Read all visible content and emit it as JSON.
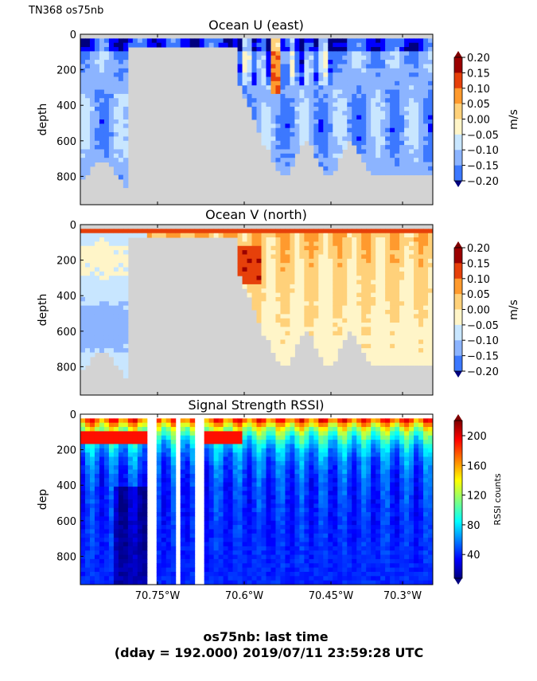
{
  "header": {
    "text": "TN368 os75nb"
  },
  "footer": {
    "line1": "os75nb: last time",
    "line2": "(dday = 192.000) 2019/07/11 23:59:28 UTC"
  },
  "colors": {
    "nodata": "#d3d3d3",
    "background": "#ffffff"
  },
  "chart_data": [
    {
      "type": "heatmap",
      "title": "Ocean U (east)",
      "ylabel": "depth",
      "y_ticks": [
        "0",
        "200",
        "400",
        "600",
        "800"
      ],
      "y_tick_values": [
        0,
        200,
        400,
        600,
        800
      ],
      "ylim": [
        960,
        0
      ],
      "x_ticks": [],
      "colorbar": {
        "label": "m/s",
        "ticks": [
          "0.20",
          "0.15",
          "0.10",
          "0.05",
          "0.00",
          "−0.05",
          "−0.10",
          "−0.15",
          "−0.20"
        ],
        "tick_values": [
          0.2,
          0.15,
          0.1,
          0.05,
          0.0,
          -0.05,
          -0.1,
          -0.15,
          -0.2
        ],
        "range": [
          -0.2,
          0.2
        ],
        "colormap": "jet-discrete",
        "extend": "both"
      },
      "nodata_color": "#d3d3d3"
    },
    {
      "type": "heatmap",
      "title": "Ocean V (north)",
      "ylabel": "depth",
      "y_ticks": [
        "0",
        "200",
        "400",
        "600",
        "800"
      ],
      "y_tick_values": [
        0,
        200,
        400,
        600,
        800
      ],
      "ylim": [
        960,
        0
      ],
      "x_ticks": [],
      "colorbar": {
        "label": "m/s",
        "ticks": [
          "0.20",
          "0.15",
          "0.10",
          "0.05",
          "0.00",
          "−0.05",
          "−0.10",
          "−0.15",
          "−0.20"
        ],
        "tick_values": [
          0.2,
          0.15,
          0.1,
          0.05,
          0.0,
          -0.05,
          -0.1,
          -0.15,
          -0.2
        ],
        "range": [
          -0.2,
          0.2
        ],
        "colormap": "jet-discrete",
        "extend": "both"
      },
      "nodata_color": "#d3d3d3"
    },
    {
      "type": "heatmap",
      "title": "Signal Strength RSSI)",
      "ylabel": "dep",
      "y_ticks": [
        "0",
        "200",
        "400",
        "600",
        "800"
      ],
      "y_tick_values": [
        0,
        200,
        400,
        600,
        800
      ],
      "ylim": [
        960,
        0
      ],
      "x_ticks": [
        "70.75°W",
        "70.6°W",
        "70.45°W",
        "70.3°W"
      ],
      "x_tick_values": [
        -70.75,
        -70.6,
        -70.45,
        -70.3
      ],
      "xlim": [
        -70.88,
        -70.27
      ],
      "colorbar": {
        "label": "RSSI counts",
        "ticks": [
          "200",
          "160",
          "120",
          "80",
          "40"
        ],
        "tick_values": [
          200,
          160,
          120,
          80,
          40
        ],
        "range": [
          10,
          225
        ],
        "colormap": "jet",
        "extend": "both"
      },
      "nodata_color": "#ffffff"
    }
  ]
}
